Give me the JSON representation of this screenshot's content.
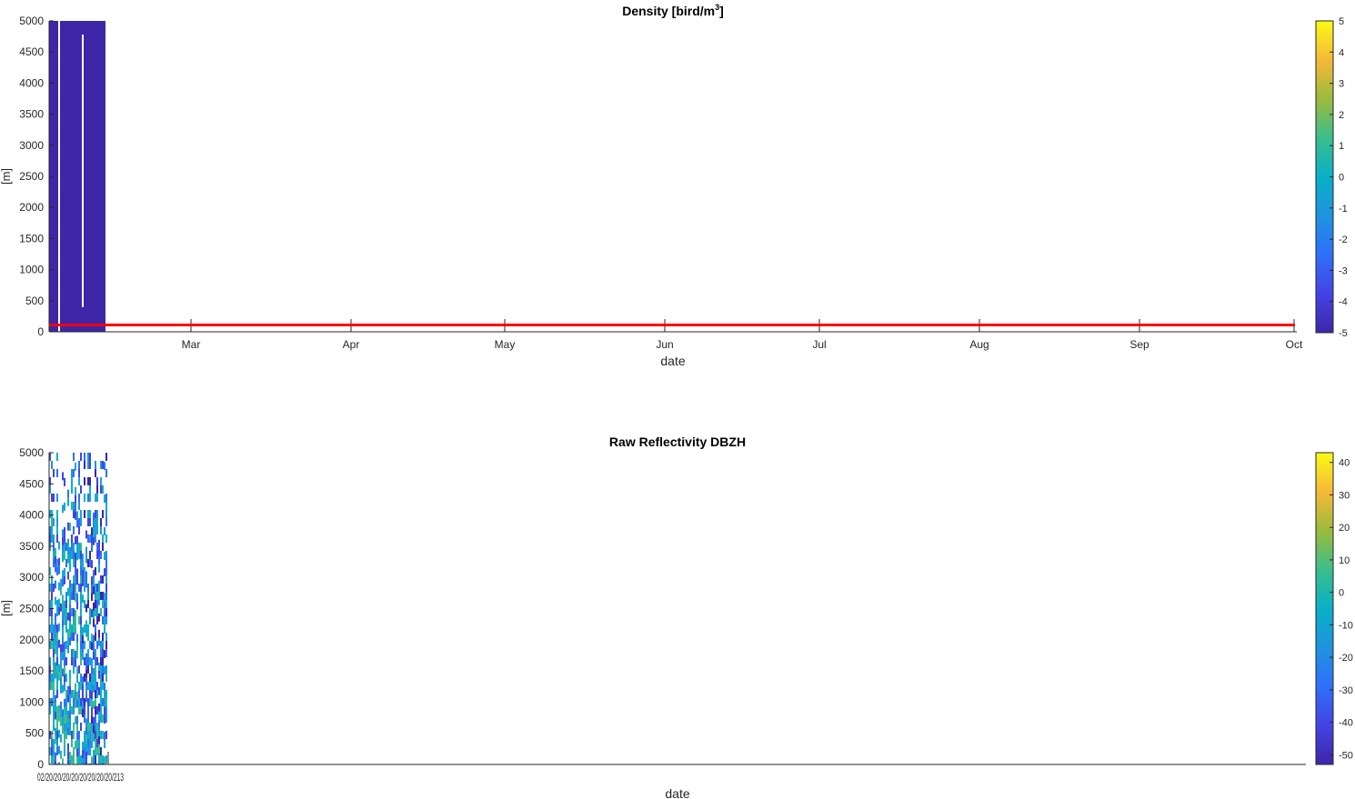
{
  "charts": [
    {
      "id": "density",
      "title": "Density [bird/m",
      "title_sup": "3",
      "title_end": "]",
      "ylabel": "[m]",
      "xlabel": "date",
      "ylim": [
        0,
        5000
      ],
      "yticks": [
        0,
        500,
        1000,
        1500,
        2000,
        2500,
        3000,
        3500,
        4000,
        4500,
        5000
      ],
      "xticks": [
        "Mar",
        "Apr",
        "May",
        "Jun",
        "Jul",
        "Aug",
        "Sep",
        "Oct"
      ],
      "colorbar": {
        "ticks": [
          5,
          4,
          3,
          2,
          1,
          0,
          -1,
          -2,
          -3,
          -4,
          -5
        ],
        "range": [
          -5,
          5
        ],
        "colormap": "parula"
      },
      "series": [
        {
          "type": "heatmap",
          "value": -5,
          "color": "#3e26a8"
        },
        {
          "type": "line",
          "value_m": 100,
          "color": "#ff0000"
        }
      ]
    },
    {
      "id": "dbzh",
      "title": "Raw Reflectivity DBZH",
      "ylabel": "[m]",
      "xlabel": "date",
      "ylim": [
        0,
        5000
      ],
      "yticks": [
        0,
        500,
        1000,
        1500,
        2000,
        2500,
        3000,
        3500,
        4000,
        4500,
        5000
      ],
      "xtick_text": "02/20/20/20/20/20/20/20/20/213",
      "colorbar": {
        "ticks": [
          40,
          30,
          20,
          10,
          0,
          -10,
          -20,
          -30,
          -40,
          -50
        ],
        "range": [
          -53,
          43
        ],
        "colormap": "parula"
      },
      "series": [
        {
          "type": "heatmap",
          "value_range": [
            -45,
            0
          ]
        }
      ]
    }
  ],
  "colors": {
    "axis": "#262626",
    "low": "#3e26a8",
    "line": "#ff0000"
  }
}
